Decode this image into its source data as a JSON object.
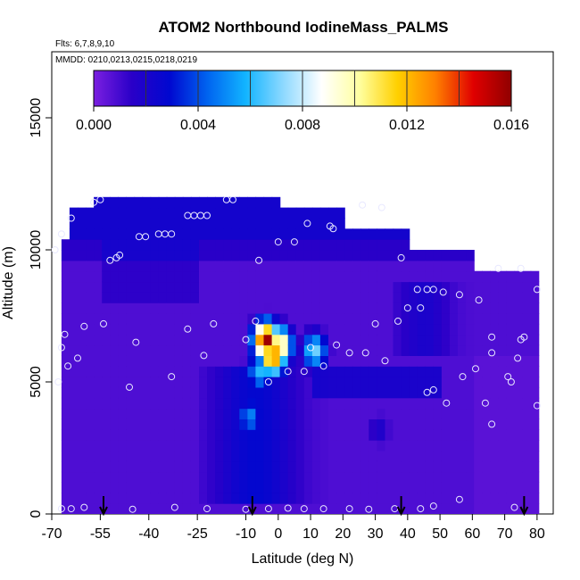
{
  "chart_data": {
    "type": "heatmap",
    "title": "ATOM2 Northbound IodineMass_PALMS",
    "subtitle_lines": [
      "Flts: 6,7,8,9,10",
      "MMDD: 0210,0213,0215,0218,0219"
    ],
    "xlabel": "Latitude (deg N)",
    "ylabel": "Altitude (m)",
    "xlim": [
      -70,
      85
    ],
    "ylim": [
      0,
      17500
    ],
    "x_ticks": [
      -70,
      -55,
      -40,
      -25,
      -10,
      0,
      10,
      20,
      30,
      40,
      50,
      60,
      70,
      80
    ],
    "y_ticks": [
      0,
      5000,
      10000,
      15000
    ],
    "colorbar": {
      "range": [
        0,
        0.016
      ],
      "ticks": [
        "0.000",
        "0.004",
        "0.008",
        "0.012",
        "0.016"
      ],
      "colors": [
        "#7b1fe0",
        "#2a00c8",
        "#0008d0",
        "#0064f0",
        "#12b4ff",
        "#8ed9ff",
        "#ffffff",
        "#ffffa0",
        "#ffd000",
        "#ff8000",
        "#e00000",
        "#900000"
      ]
    },
    "field_cells": [
      {
        "lat": -5,
        "alt": 6400,
        "value": 0.016
      },
      {
        "lat": -3,
        "alt": 5800,
        "value": 0.014
      },
      {
        "lat": -1,
        "alt": 6200,
        "value": 0.012
      },
      {
        "lat": -7,
        "alt": 5200,
        "value": 0.006
      },
      {
        "lat": -10,
        "alt": 3500,
        "value": 0.005
      },
      {
        "lat": 10,
        "alt": 6000,
        "value": 0.007
      },
      {
        "lat": 30,
        "alt": 3000,
        "value": 0.002
      },
      {
        "lat": -40,
        "alt": 9000,
        "value": 0.001
      }
    ],
    "observation_points": [
      {
        "lat": -67,
        "alt": 200
      },
      {
        "lat": -64,
        "alt": 200
      },
      {
        "lat": -60,
        "alt": 250
      },
      {
        "lat": -45,
        "alt": 180
      },
      {
        "lat": -32,
        "alt": 250
      },
      {
        "lat": -22,
        "alt": 200
      },
      {
        "lat": -10,
        "alt": 180
      },
      {
        "lat": -3,
        "alt": 200
      },
      {
        "lat": 3,
        "alt": 220
      },
      {
        "lat": 8,
        "alt": 200
      },
      {
        "lat": 14,
        "alt": 200
      },
      {
        "lat": 22,
        "alt": 200
      },
      {
        "lat": 28,
        "alt": 180
      },
      {
        "lat": 36,
        "alt": 200
      },
      {
        "lat": 44,
        "alt": 200
      },
      {
        "lat": 48,
        "alt": 300
      },
      {
        "lat": 56,
        "alt": 550
      },
      {
        "lat": 73,
        "alt": 250
      },
      {
        "lat": -68,
        "alt": 5000
      },
      {
        "lat": -65,
        "alt": 5600
      },
      {
        "lat": -62,
        "alt": 5900
      },
      {
        "lat": -46,
        "alt": 4800
      },
      {
        "lat": -33,
        "alt": 5200
      },
      {
        "lat": -23,
        "alt": 6000
      },
      {
        "lat": -10,
        "alt": 6600
      },
      {
        "lat": -7,
        "alt": 7300
      },
      {
        "lat": -3,
        "alt": 5000
      },
      {
        "lat": 3,
        "alt": 5400
      },
      {
        "lat": 8,
        "alt": 5400
      },
      {
        "lat": 10,
        "alt": 6300
      },
      {
        "lat": 14,
        "alt": 5600
      },
      {
        "lat": 18,
        "alt": 6400
      },
      {
        "lat": 22,
        "alt": 6100
      },
      {
        "lat": 27,
        "alt": 6100
      },
      {
        "lat": 33,
        "alt": 5800
      },
      {
        "lat": 37,
        "alt": 7300
      },
      {
        "lat": 46,
        "alt": 4600
      },
      {
        "lat": 48,
        "alt": 4700
      },
      {
        "lat": 52,
        "alt": 4200
      },
      {
        "lat": 57,
        "alt": 5200
      },
      {
        "lat": 61,
        "alt": 5500
      },
      {
        "lat": 64,
        "alt": 4200
      },
      {
        "lat": 66,
        "alt": 3400
      },
      {
        "lat": 66,
        "alt": 6100
      },
      {
        "lat": 71,
        "alt": 5200
      },
      {
        "lat": 72,
        "alt": 5000
      },
      {
        "lat": 74,
        "alt": 5900
      },
      {
        "lat": 76,
        "alt": 6700
      },
      {
        "lat": 80,
        "alt": 4100
      },
      {
        "lat": -67,
        "alt": 6300
      },
      {
        "lat": -66,
        "alt": 6800
      },
      {
        "lat": -60,
        "alt": 7100
      },
      {
        "lat": -54,
        "alt": 7200
      },
      {
        "lat": -44,
        "alt": 6500
      },
      {
        "lat": -28,
        "alt": 7000
      },
      {
        "lat": -20,
        "alt": 7200
      },
      {
        "lat": 30,
        "alt": 7200
      },
      {
        "lat": 44,
        "alt": 7800
      },
      {
        "lat": 48,
        "alt": 8500
      },
      {
        "lat": 56,
        "alt": 8300
      },
      {
        "lat": 62,
        "alt": 8100
      },
      {
        "lat": 66,
        "alt": 6700
      },
      {
        "lat": 75,
        "alt": 6600
      },
      {
        "lat": -69,
        "alt": 10000
      },
      {
        "lat": -67,
        "alt": 10600
      },
      {
        "lat": -64,
        "alt": 11200
      },
      {
        "lat": -57,
        "alt": 11800
      },
      {
        "lat": -55,
        "alt": 11900
      },
      {
        "lat": -52,
        "alt": 9600
      },
      {
        "lat": -50,
        "alt": 9700
      },
      {
        "lat": -49,
        "alt": 9800
      },
      {
        "lat": -43,
        "alt": 10500
      },
      {
        "lat": -41,
        "alt": 10500
      },
      {
        "lat": -37,
        "alt": 10600
      },
      {
        "lat": -35,
        "alt": 10600
      },
      {
        "lat": -33,
        "alt": 10600
      },
      {
        "lat": -28,
        "alt": 11300
      },
      {
        "lat": -26,
        "alt": 11300
      },
      {
        "lat": -24,
        "alt": 11300
      },
      {
        "lat": -22,
        "alt": 11300
      },
      {
        "lat": -16,
        "alt": 11900
      },
      {
        "lat": -14,
        "alt": 11900
      },
      {
        "lat": -6,
        "alt": 9600
      },
      {
        "lat": 0,
        "alt": 10300
      },
      {
        "lat": 5,
        "alt": 10300
      },
      {
        "lat": 9,
        "alt": 11000
      },
      {
        "lat": 16,
        "alt": 10900
      },
      {
        "lat": 17,
        "alt": 10800
      },
      {
        "lat": 26,
        "alt": 11700
      },
      {
        "lat": 32,
        "alt": 11600
      },
      {
        "lat": 38,
        "alt": 9700
      },
      {
        "lat": 40,
        "alt": 7800
      },
      {
        "lat": 43,
        "alt": 8500
      },
      {
        "lat": 46,
        "alt": 8500
      },
      {
        "lat": 51,
        "alt": 8400
      },
      {
        "lat": 68,
        "alt": 9300
      },
      {
        "lat": 75,
        "alt": 9300
      },
      {
        "lat": 80,
        "alt": 8500
      }
    ],
    "arrow_markers_lat": [
      -54,
      -8,
      38,
      76
    ]
  }
}
